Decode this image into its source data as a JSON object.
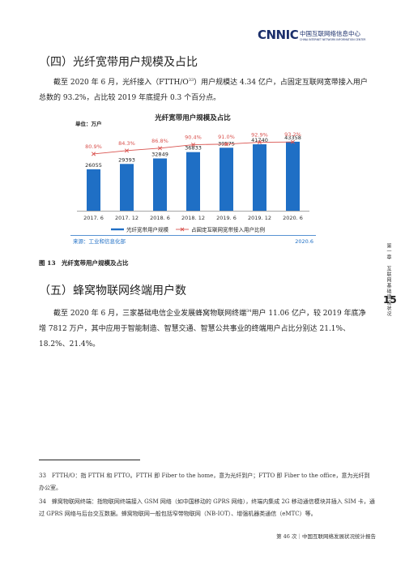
{
  "header": {
    "logo_mark": "CNNIC",
    "logo_cn": "中国互联网络信息中心",
    "logo_en": "CHINA INTERNET NETWORK INFORMATION CENTER"
  },
  "section4": {
    "heading": "（四）光纤宽带用户规模及占比",
    "para_a": "截至 2020 年 6 月，光纤接入（FTTH/O",
    "para_sup": "33",
    "para_b": "）用户规模达 4.34 亿户，占固定互联网宽带接入用户总数的 93.2%，占比较 2019 年底提升 0.3 个百分点。"
  },
  "chart_data": {
    "type": "bar",
    "title": "光纤宽带用户规模及占比",
    "unit_label": "单位：万户",
    "categories": [
      "2017. 6",
      "2017. 12",
      "2018. 6",
      "2018. 12",
      "2019. 6",
      "2019. 12",
      "2020. 6"
    ],
    "series": [
      {
        "name": "光纤宽带用户规模",
        "values": [
          26055,
          29393,
          32849,
          36833,
          39575,
          41740,
          43358
        ],
        "color": "#1f6fc5"
      },
      {
        "name": "占固定互联网宽带接入用户比例",
        "values": [
          80.9,
          84.3,
          86.8,
          90.4,
          91.0,
          92.9,
          93.2
        ],
        "labels": [
          "80.9%",
          "84.3%",
          "86.8%",
          "90.4%",
          "91.0%",
          "92.9%",
          "93.2%"
        ],
        "color": "#d9534f"
      }
    ],
    "source": "来源：工业和信息化部",
    "date": "2020.6"
  },
  "figure": {
    "caption": "图 13　光纤宽带用户规模及占比"
  },
  "section5": {
    "heading": "（五）蜂窝物联网终端用户数",
    "para_a": "截至 2020 年 6 月，三家基础电信企业发展蜂窝物联网终端",
    "para_sup": "34",
    "para_b": "用户 11.06 亿户，较 2019 年底净增 7812 万户，其中应用于智能制造、智慧交通、智慧公共事业的终端用户占比分别达 21.1%、18.2%、21.4%。"
  },
  "sidebar": {
    "page_number": "15",
    "chapter": "第一章　互联网基础建设状况"
  },
  "footnotes": [
    {
      "num": "33",
      "text": "FTTH/O：指 FTTH 和 FTTO。FTTH 即 Fiber to the home，意为光纤到户；FTTO 即 Fiber to the office，意为光纤到办公室。"
    },
    {
      "num": "34",
      "text": "蜂窝物联网终端：指物联网终端接入 GSM 网络（如中国移动的 GPRS 网络），终端内集成 2G 移动通信模块并插入 SIM 卡，通过 GPRS 网络与后台交互数据。蜂窝物联网一般包括窄带物联网（NB-IOT）、增强机器类通信（eMTC）等。"
    }
  ],
  "footer": {
    "text": "第 46 次｜中国互联网络发展状况统计报告"
  }
}
